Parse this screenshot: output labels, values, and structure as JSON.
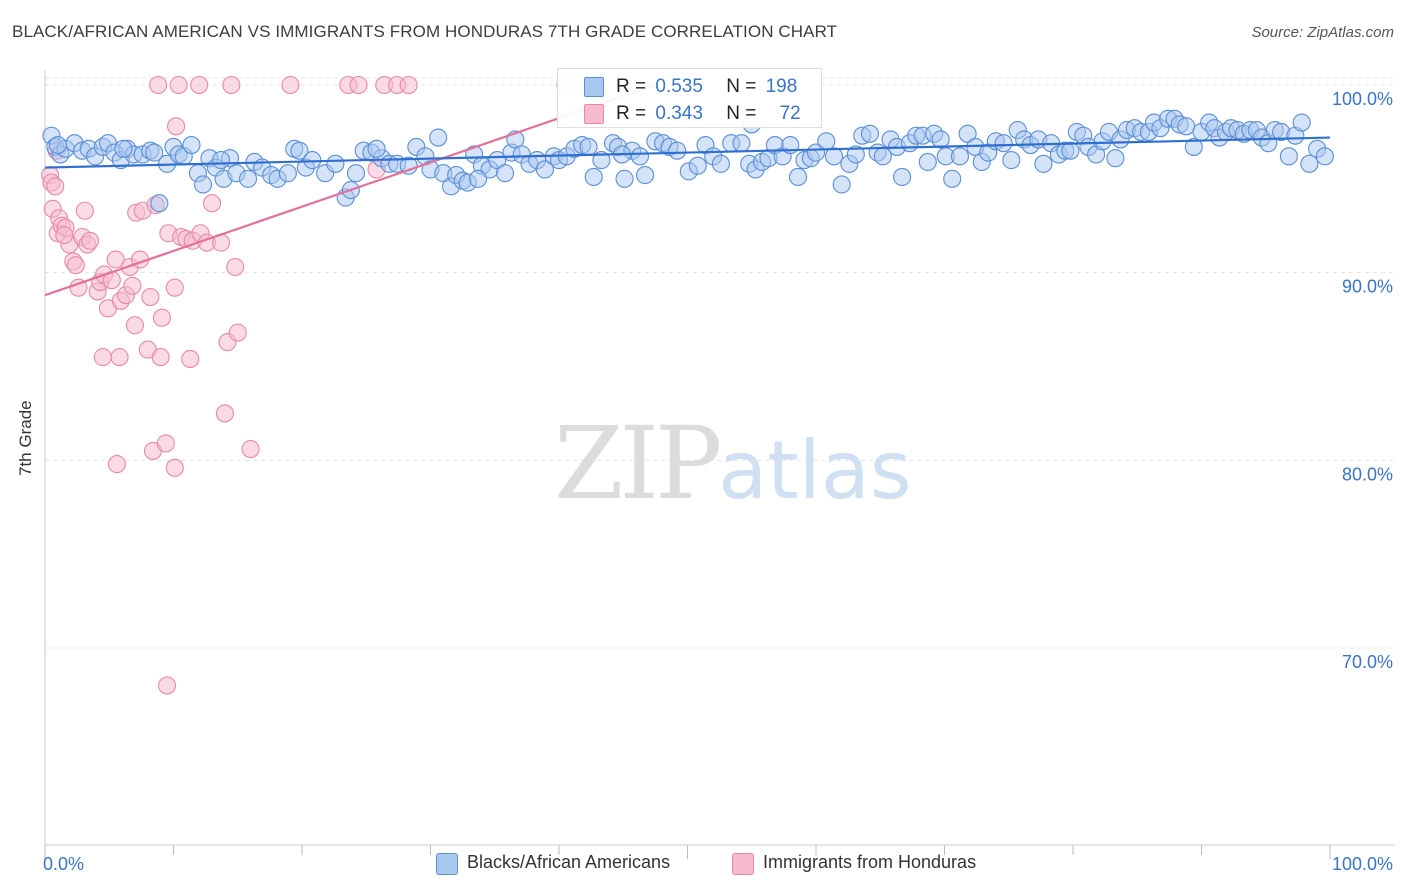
{
  "header": {
    "title": "BLACK/AFRICAN AMERICAN VS IMMIGRANTS FROM HONDURAS 7TH GRADE CORRELATION CHART",
    "source": "Source: ZipAtlas.com"
  },
  "watermark": {
    "zip": "ZIP",
    "atlas": "atlas"
  },
  "legend": {
    "row1": {
      "r_label": "R =",
      "r_value": "0.535",
      "n_label": "N =",
      "n_value": "198"
    },
    "row2": {
      "r_label": "R =",
      "r_value": "0.343",
      "n_label": "N =",
      "n_value": "72"
    }
  },
  "bottom_legend": {
    "series1": "Blacks/African Americans",
    "series2": "Immigrants from Honduras"
  },
  "colors": {
    "blue_fill": "#a9c8f0",
    "blue_stroke": "#5b8fd6",
    "blue_line": "#2f6fd0",
    "pink_fill": "#f6bccd",
    "pink_stroke": "#e889a7",
    "pink_line": "#e4709a",
    "tick_label": "#3b73c8",
    "grid": "#e3e3e3"
  },
  "chart_data": {
    "type": "scatter",
    "title": "BLACK/AFRICAN AMERICAN VS IMMIGRANTS FROM HONDURAS 7TH GRADE CORRELATION CHART",
    "xlabel": "",
    "ylabel": "7th Grade",
    "xlim": [
      0,
      100
    ],
    "ylim": [
      59.5,
      100.8
    ],
    "x_tick_labels": [
      "0.0%",
      "100.0%"
    ],
    "y_ticks": [
      70,
      80,
      90,
      100
    ],
    "y_tick_labels": [
      "70.0%",
      "80.0%",
      "90.0%",
      "100.0%"
    ],
    "grid": true,
    "series": [
      {
        "name": "Blacks/African Americans",
        "R": 0.535,
        "N": 198,
        "trend": [
          [
            0,
            95.6
          ],
          [
            100,
            97.2
          ]
        ],
        "points": [
          [
            0.5,
            97.3
          ],
          [
            0.8,
            96.7
          ],
          [
            1.2,
            96.3
          ],
          [
            1.6,
            96.6
          ],
          [
            2.3,
            96.9
          ],
          [
            2.9,
            96.5
          ],
          [
            3.4,
            96.6
          ],
          [
            3.9,
            96.2
          ],
          [
            4.5,
            96.7
          ],
          [
            4.9,
            96.9
          ],
          [
            5.4,
            96.4
          ],
          [
            5.9,
            96.0
          ],
          [
            6.4,
            96.6
          ],
          [
            6.9,
            96.3
          ],
          [
            7.6,
            96.3
          ],
          [
            8.2,
            96.5
          ],
          [
            8.5,
            96.4
          ],
          [
            8.9,
            93.7
          ],
          [
            9.5,
            95.8
          ],
          [
            10.0,
            96.7
          ],
          [
            10.4,
            96.3
          ],
          [
            10.8,
            96.2
          ],
          [
            11.4,
            96.8
          ],
          [
            11.9,
            95.3
          ],
          [
            12.3,
            94.7
          ],
          [
            12.8,
            96.1
          ],
          [
            13.3,
            95.6
          ],
          [
            13.9,
            95.0
          ],
          [
            14.4,
            96.1
          ],
          [
            14.9,
            95.3
          ],
          [
            15.8,
            95.0
          ],
          [
            16.3,
            95.9
          ],
          [
            16.9,
            95.6
          ],
          [
            17.6,
            95.2
          ],
          [
            18.1,
            95.0
          ],
          [
            18.9,
            95.3
          ],
          [
            19.4,
            96.6
          ],
          [
            19.8,
            96.5
          ],
          [
            20.3,
            95.6
          ],
          [
            20.8,
            96.0
          ],
          [
            21.8,
            95.3
          ],
          [
            22.6,
            95.8
          ],
          [
            23.4,
            94.0
          ],
          [
            23.8,
            94.4
          ],
          [
            24.2,
            95.3
          ],
          [
            24.8,
            96.5
          ],
          [
            25.4,
            96.4
          ],
          [
            26.2,
            96.1
          ],
          [
            26.8,
            95.8
          ],
          [
            27.4,
            95.8
          ],
          [
            28.3,
            95.7
          ],
          [
            28.9,
            96.7
          ],
          [
            29.6,
            96.2
          ],
          [
            30.0,
            95.5
          ],
          [
            30.6,
            97.2
          ],
          [
            31.0,
            95.3
          ],
          [
            31.6,
            94.6
          ],
          [
            32.0,
            95.2
          ],
          [
            32.5,
            94.9
          ],
          [
            32.9,
            94.8
          ],
          [
            33.4,
            96.3
          ],
          [
            34.0,
            95.7
          ],
          [
            34.6,
            95.5
          ],
          [
            35.2,
            96.0
          ],
          [
            35.8,
            95.3
          ],
          [
            36.3,
            96.4
          ],
          [
            36.6,
            97.1
          ],
          [
            37.1,
            96.3
          ],
          [
            37.7,
            95.8
          ],
          [
            38.3,
            96.0
          ],
          [
            38.9,
            95.5
          ],
          [
            39.6,
            96.2
          ],
          [
            40.0,
            96.0
          ],
          [
            40.6,
            96.2
          ],
          [
            41.2,
            96.6
          ],
          [
            41.8,
            96.8
          ],
          [
            42.3,
            96.7
          ],
          [
            42.7,
            95.1
          ],
          [
            43.3,
            96.0
          ],
          [
            44.2,
            96.9
          ],
          [
            44.6,
            96.7
          ],
          [
            45.1,
            95.0
          ],
          [
            45.7,
            96.5
          ],
          [
            46.3,
            96.2
          ],
          [
            46.7,
            95.2
          ],
          [
            47.5,
            97.0
          ],
          [
            48.1,
            96.9
          ],
          [
            48.6,
            96.7
          ],
          [
            49.2,
            96.5
          ],
          [
            50.1,
            95.4
          ],
          [
            50.8,
            95.7
          ],
          [
            51.4,
            96.8
          ],
          [
            52.0,
            96.2
          ],
          [
            52.6,
            95.8
          ],
          [
            53.4,
            96.9
          ],
          [
            54.2,
            96.9
          ],
          [
            54.8,
            95.8
          ],
          [
            55.3,
            95.5
          ],
          [
            55.8,
            95.9
          ],
          [
            56.3,
            96.1
          ],
          [
            56.8,
            96.8
          ],
          [
            57.4,
            96.2
          ],
          [
            58.0,
            96.8
          ],
          [
            58.6,
            95.1
          ],
          [
            59.1,
            96.0
          ],
          [
            59.6,
            96.1
          ],
          [
            60.0,
            96.4
          ],
          [
            60.8,
            97.0
          ],
          [
            61.4,
            96.2
          ],
          [
            62.0,
            94.7
          ],
          [
            62.6,
            95.8
          ],
          [
            63.1,
            96.3
          ],
          [
            63.6,
            97.3
          ],
          [
            64.2,
            97.4
          ],
          [
            64.8,
            96.4
          ],
          [
            65.2,
            96.2
          ],
          [
            65.8,
            97.1
          ],
          [
            66.3,
            96.7
          ],
          [
            66.7,
            95.1
          ],
          [
            67.3,
            96.9
          ],
          [
            67.8,
            97.3
          ],
          [
            68.3,
            97.3
          ],
          [
            68.7,
            95.9
          ],
          [
            69.2,
            97.4
          ],
          [
            69.7,
            97.1
          ],
          [
            70.1,
            96.2
          ],
          [
            70.6,
            95.0
          ],
          [
            71.2,
            96.2
          ],
          [
            71.8,
            97.4
          ],
          [
            72.4,
            96.7
          ],
          [
            72.9,
            95.9
          ],
          [
            73.4,
            96.4
          ],
          [
            74.0,
            97.0
          ],
          [
            74.6,
            96.9
          ],
          [
            75.2,
            96.0
          ],
          [
            75.7,
            97.6
          ],
          [
            76.2,
            97.1
          ],
          [
            76.7,
            96.8
          ],
          [
            77.3,
            97.1
          ],
          [
            77.7,
            95.8
          ],
          [
            78.3,
            96.9
          ],
          [
            78.9,
            96.3
          ],
          [
            79.4,
            96.5
          ],
          [
            79.8,
            96.5
          ],
          [
            80.3,
            97.5
          ],
          [
            80.8,
            97.3
          ],
          [
            81.2,
            96.7
          ],
          [
            81.8,
            96.3
          ],
          [
            82.3,
            97.0
          ],
          [
            82.8,
            97.5
          ],
          [
            83.3,
            96.1
          ],
          [
            83.7,
            97.1
          ],
          [
            84.2,
            97.6
          ],
          [
            84.8,
            97.7
          ],
          [
            85.3,
            97.5
          ],
          [
            85.9,
            97.5
          ],
          [
            86.3,
            98.0
          ],
          [
            86.8,
            97.7
          ],
          [
            87.4,
            98.2
          ],
          [
            87.9,
            98.2
          ],
          [
            88.3,
            97.9
          ],
          [
            88.8,
            97.8
          ],
          [
            89.4,
            96.7
          ],
          [
            90.0,
            97.5
          ],
          [
            90.6,
            98.0
          ],
          [
            91.0,
            97.7
          ],
          [
            91.4,
            97.2
          ],
          [
            91.9,
            97.5
          ],
          [
            92.3,
            97.7
          ],
          [
            92.8,
            97.6
          ],
          [
            93.3,
            97.4
          ],
          [
            93.8,
            97.6
          ],
          [
            94.3,
            97.6
          ],
          [
            94.7,
            97.2
          ],
          [
            95.2,
            96.9
          ],
          [
            95.7,
            97.6
          ],
          [
            96.2,
            97.5
          ],
          [
            96.8,
            96.2
          ],
          [
            97.3,
            97.3
          ],
          [
            97.8,
            98.0
          ],
          [
            98.4,
            95.8
          ],
          [
            99.0,
            96.6
          ],
          [
            99.6,
            96.2
          ],
          [
            55.0,
            97.9
          ],
          [
            1.0,
            96.8
          ],
          [
            6.1,
            96.6
          ],
          [
            13.7,
            96.0
          ],
          [
            25.8,
            96.6
          ],
          [
            33.7,
            95.0
          ],
          [
            44.9,
            96.3
          ]
        ]
      },
      {
        "name": "Immigrants from Honduras",
        "R": 0.343,
        "N": 72,
        "trend": [
          [
            0,
            88.8
          ],
          [
            47.5,
            100.0
          ]
        ],
        "points": [
          [
            0.4,
            95.2
          ],
          [
            0.5,
            94.8
          ],
          [
            0.6,
            93.4
          ],
          [
            0.8,
            94.6
          ],
          [
            1.0,
            92.1
          ],
          [
            1.1,
            92.9
          ],
          [
            1.3,
            92.5
          ],
          [
            1.6,
            92.4
          ],
          [
            1.9,
            91.5
          ],
          [
            2.2,
            90.6
          ],
          [
            2.4,
            90.4
          ],
          [
            2.6,
            89.2
          ],
          [
            2.9,
            91.9
          ],
          [
            3.3,
            91.5
          ],
          [
            3.5,
            91.7
          ],
          [
            4.1,
            89.0
          ],
          [
            4.3,
            89.5
          ],
          [
            4.6,
            89.9
          ],
          [
            4.9,
            88.1
          ],
          [
            5.2,
            89.6
          ],
          [
            5.5,
            90.7
          ],
          [
            5.9,
            88.5
          ],
          [
            6.3,
            88.8
          ],
          [
            6.6,
            90.3
          ],
          [
            7.0,
            87.2
          ],
          [
            7.1,
            93.2
          ],
          [
            7.4,
            90.7
          ],
          [
            7.6,
            93.3
          ],
          [
            8.0,
            85.9
          ],
          [
            8.2,
            88.7
          ],
          [
            8.6,
            93.6
          ],
          [
            9.1,
            87.6
          ],
          [
            9.6,
            92.1
          ],
          [
            10.1,
            89.2
          ],
          [
            10.6,
            91.9
          ],
          [
            11.0,
            91.8
          ],
          [
            11.5,
            91.7
          ],
          [
            12.1,
            92.1
          ],
          [
            12.6,
            91.6
          ],
          [
            13.0,
            93.7
          ],
          [
            13.7,
            91.6
          ],
          [
            10.2,
            97.8
          ],
          [
            14.2,
            86.3
          ],
          [
            14.8,
            90.3
          ],
          [
            15.0,
            86.8
          ],
          [
            5.8,
            85.5
          ],
          [
            4.5,
            85.5
          ],
          [
            9.0,
            85.5
          ],
          [
            11.3,
            85.4
          ],
          [
            14.0,
            82.5
          ],
          [
            8.4,
            80.5
          ],
          [
            9.4,
            80.9
          ],
          [
            5.6,
            79.8
          ],
          [
            10.1,
            79.6
          ],
          [
            16.0,
            80.6
          ],
          [
            9.5,
            68.0
          ],
          [
            8.8,
            100.0
          ],
          [
            10.4,
            100.0
          ],
          [
            12.0,
            100.0
          ],
          [
            14.5,
            100.0
          ],
          [
            19.1,
            100.0
          ],
          [
            23.6,
            100.0
          ],
          [
            24.4,
            100.0
          ],
          [
            26.4,
            100.0
          ],
          [
            27.4,
            100.0
          ],
          [
            28.3,
            100.0
          ],
          [
            40.5,
            100.0
          ],
          [
            0.9,
            96.5
          ],
          [
            1.5,
            92.0
          ],
          [
            25.8,
            95.5
          ],
          [
            3.1,
            93.3
          ],
          [
            6.8,
            89.3
          ]
        ]
      }
    ]
  }
}
